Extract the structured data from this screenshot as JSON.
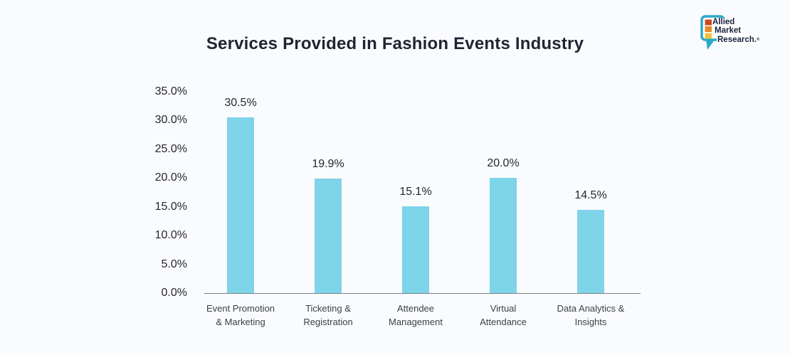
{
  "logo": {
    "lines": [
      "Allied",
      "Market",
      "Research."
    ],
    "reg_mark": "®",
    "bubble_color": "#2aa9c9",
    "square_colors": [
      "#c84a1d",
      "#e8891f",
      "#edc33c"
    ],
    "text_color": "#17233e"
  },
  "chart_data": {
    "type": "bar",
    "title": "Services Provided in Fashion Events Industry",
    "categories": [
      "Event Promotion\n& Marketing",
      "Ticketing &\nRegistration",
      "Attendee\nManagement",
      "Virtual\nAttendance",
      "Data Analytics &\nInsights"
    ],
    "values": [
      30.5,
      19.9,
      15.1,
      20.0,
      14.5
    ],
    "value_labels": [
      "30.5%",
      "19.9%",
      "15.1%",
      "20.0%",
      "14.5%"
    ],
    "ytick_labels": [
      "35.0%",
      "30.0%",
      "25.0%",
      "20.0%",
      "15.0%",
      "10.0%",
      "5.0%",
      "0.0%"
    ],
    "xlabel": "",
    "ylabel": "",
    "ylim": [
      0,
      35
    ],
    "ytick_step": 5,
    "grid": false,
    "legend": null,
    "bar_color": "#7ed4e8",
    "axis_color": "#7b7f85",
    "label_color": "#23272e"
  }
}
